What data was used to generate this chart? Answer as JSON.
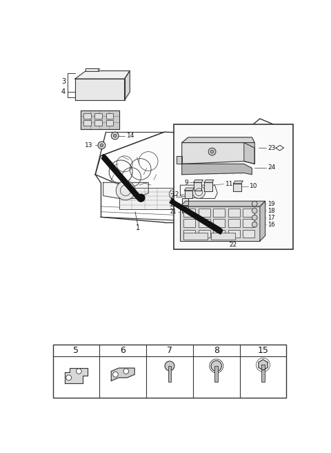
{
  "bg_color": "#ffffff",
  "fig_width": 4.8,
  "fig_height": 6.56,
  "dpi": 100,
  "line_color": "#333333",
  "table_labels": [
    "5",
    "6",
    "7",
    "8",
    "15"
  ]
}
